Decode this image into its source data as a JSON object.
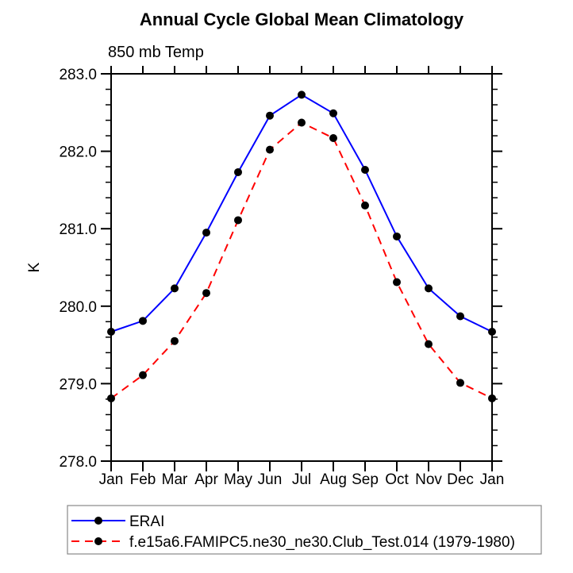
{
  "header": {
    "title": "Annual Cycle Global Mean Climatology",
    "subtitle": "850 mb Temp"
  },
  "chart_data": {
    "type": "line",
    "title": "Annual Cycle Global Mean Climatology",
    "subtitle": "850 mb Temp",
    "ylabel": "K",
    "xlabel": "",
    "x_categories": [
      "Jan",
      "Feb",
      "Mar",
      "Apr",
      "May",
      "Jun",
      "Jul",
      "Aug",
      "Sep",
      "Oct",
      "Nov",
      "Dec",
      "Jan"
    ],
    "ylim": [
      278.0,
      283.0
    ],
    "ytick_labels": [
      "278.0",
      "279.0",
      "280.0",
      "281.0",
      "282.0",
      "283.0"
    ],
    "ytick_interval": 1.0,
    "y_minor_tick_interval": 0.2,
    "grid": false,
    "legend_position": "bottom-left-box",
    "series": [
      {
        "name": "ERAI",
        "color": "#0000ff",
        "line_style": "solid",
        "marker": "filled-circle",
        "marker_color": "#000000",
        "values": [
          279.67,
          279.81,
          280.23,
          280.95,
          281.73,
          282.46,
          282.73,
          282.49,
          281.76,
          280.9,
          280.23,
          279.87,
          279.67
        ]
      },
      {
        "name": "f.e15a6.FAMIPC5.ne30_ne30.Club_Test.014 (1979-1980)",
        "color": "#ff0000",
        "line_style": "dashed",
        "marker": "filled-circle",
        "marker_color": "#000000",
        "values": [
          278.81,
          279.11,
          279.55,
          280.17,
          281.11,
          282.02,
          282.37,
          282.17,
          281.3,
          280.31,
          279.51,
          279.01,
          278.81
        ]
      }
    ]
  },
  "colors": {
    "axis": "#000000",
    "text": "#000000",
    "erai_line": "#0000ff",
    "model_line": "#ff0000",
    "marker": "#000000",
    "legend_border": "#888888",
    "background": "#ffffff"
  }
}
